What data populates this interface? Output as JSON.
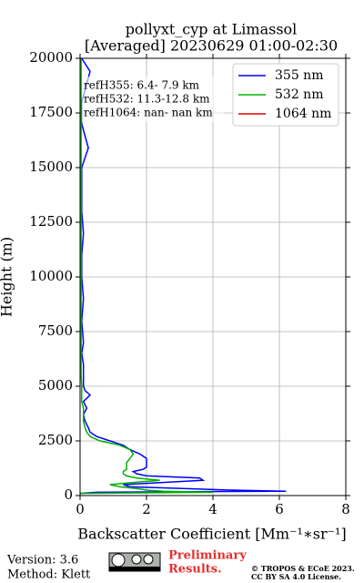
{
  "chart_data": {
    "type": "line",
    "title": [
      "pollyxt_cyp at Limassol",
      "[Averaged] 20230629 01:00-02:30"
    ],
    "xlabel": "Backscatter Coefficient [Mm⁻¹∗sr⁻¹]",
    "ylabel": "Height (m)",
    "y": [
      100,
      150,
      200,
      250,
      300,
      400,
      500,
      600,
      700,
      800,
      900,
      1000,
      1100,
      1200,
      1300,
      1500,
      1700,
      1900,
      2100,
      2300,
      2500,
      2700,
      2900,
      3100,
      3400,
      3700,
      4000,
      4300,
      4600,
      4800,
      5000,
      5500,
      6000,
      6500,
      7000,
      8000,
      9000,
      10000,
      11000,
      12000,
      13000,
      14000,
      15000,
      15900,
      17000,
      18000,
      19400,
      20000
    ],
    "series": [
      {
        "name": "355 nm",
        "color": "#0000ff",
        "values": [
          0,
          0.5,
          6.2,
          4.5,
          3.5,
          1.5,
          1.3,
          2.5,
          3.7,
          3.6,
          2.0,
          1.7,
          1.6,
          1.9,
          2.0,
          2.0,
          2.0,
          1.8,
          1.5,
          1.3,
          0.9,
          0.5,
          0.3,
          0.25,
          0.15,
          0.1,
          0.2,
          0.1,
          0.3,
          0.15,
          0.1,
          0.1,
          0.1,
          0.05,
          0.1,
          0.05,
          0.1,
          0.05,
          0.05,
          0.1,
          0.05,
          0.05,
          0.05,
          0.25,
          0.05,
          0.05,
          0.3,
          0.05
        ]
      },
      {
        "name": "532 nm",
        "color": "#00b000",
        "values": [
          0,
          4.0,
          2.5,
          2.0,
          1.8,
          1.2,
          0.9,
          1.6,
          2.4,
          1.7,
          1.4,
          1.3,
          1.3,
          1.4,
          1.4,
          1.4,
          1.5,
          1.6,
          1.5,
          1.2,
          0.6,
          0.3,
          0.2,
          0.15,
          0.1,
          0.1,
          0.1,
          0.05,
          0.05,
          0.05,
          0.05,
          0.03,
          0.03,
          0.03,
          0.03,
          0.03,
          0.03,
          0.03,
          0.03,
          0.03,
          0.03,
          0.03,
          0.03,
          0.03,
          0.03,
          0.03,
          0.03,
          0.03
        ]
      },
      {
        "name": "1064 nm",
        "color": "#e00000",
        "values": [
          null,
          null,
          null,
          null,
          null,
          null,
          null,
          null,
          null,
          null,
          null,
          null,
          null,
          null,
          null,
          null,
          null,
          null,
          null,
          null,
          null,
          null,
          null,
          null,
          null,
          null,
          null,
          null,
          null,
          null,
          null,
          null,
          null,
          null,
          null,
          null,
          null,
          null,
          null,
          null,
          null,
          null,
          null,
          null,
          null,
          null,
          null,
          null
        ]
      }
    ],
    "annotations": [
      "refH355:  6.4- 7.9 km",
      "refH532: 11.3-12.8 km",
      "refH1064:  nan- nan km"
    ],
    "xlim": [
      0,
      8
    ],
    "xticks": [
      0,
      2,
      4,
      6,
      8
    ],
    "ylim": [
      0,
      20000
    ],
    "yticks": [
      0,
      2500,
      5000,
      7500,
      10000,
      12500,
      15000,
      17500,
      20000
    ],
    "grid": true,
    "legend": "upper right"
  },
  "footer": {
    "version": "Version: 3.6",
    "method": "Method: Klett",
    "preliminary": [
      "Preliminary",
      "Results."
    ],
    "license": [
      "© TROPOS & ECoE 2023.",
      "CC BY SA 4.0 License."
    ]
  }
}
